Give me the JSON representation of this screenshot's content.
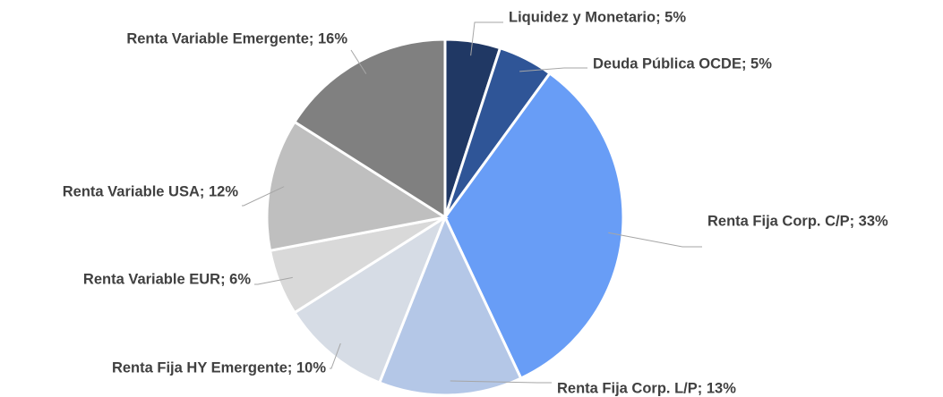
{
  "chart_data": {
    "type": "pie",
    "categories": [
      "Liquidez y Monetario",
      "Deuda Pública OCDE",
      "Renta Fija Corp. C/P",
      "Renta Fija Corp. L/P",
      "Renta Fija HY Emergente",
      "Renta Variable EUR",
      "Renta Variable USA",
      "Renta Variable Emergente"
    ],
    "values": [
      5,
      5,
      33,
      13,
      10,
      6,
      12,
      16
    ],
    "value_labels": [
      "Liquidez y Monetario; 5%",
      "Deuda Pública OCDE; 5%",
      "Renta Fija Corp. C/P; 33%",
      "Renta Fija Corp. L/P; 13%",
      "Renta Fija HY Emergente; 10%",
      "Renta Variable EUR; 6%",
      "Renta Variable USA; 12%",
      "Renta Variable Emergente; 16%"
    ],
    "colors": [
      "#203864",
      "#2f5597",
      "#689df6",
      "#b4c7e7",
      "#d6dce5",
      "#d9d9d9",
      "#bfbfbf",
      "#808080"
    ]
  }
}
